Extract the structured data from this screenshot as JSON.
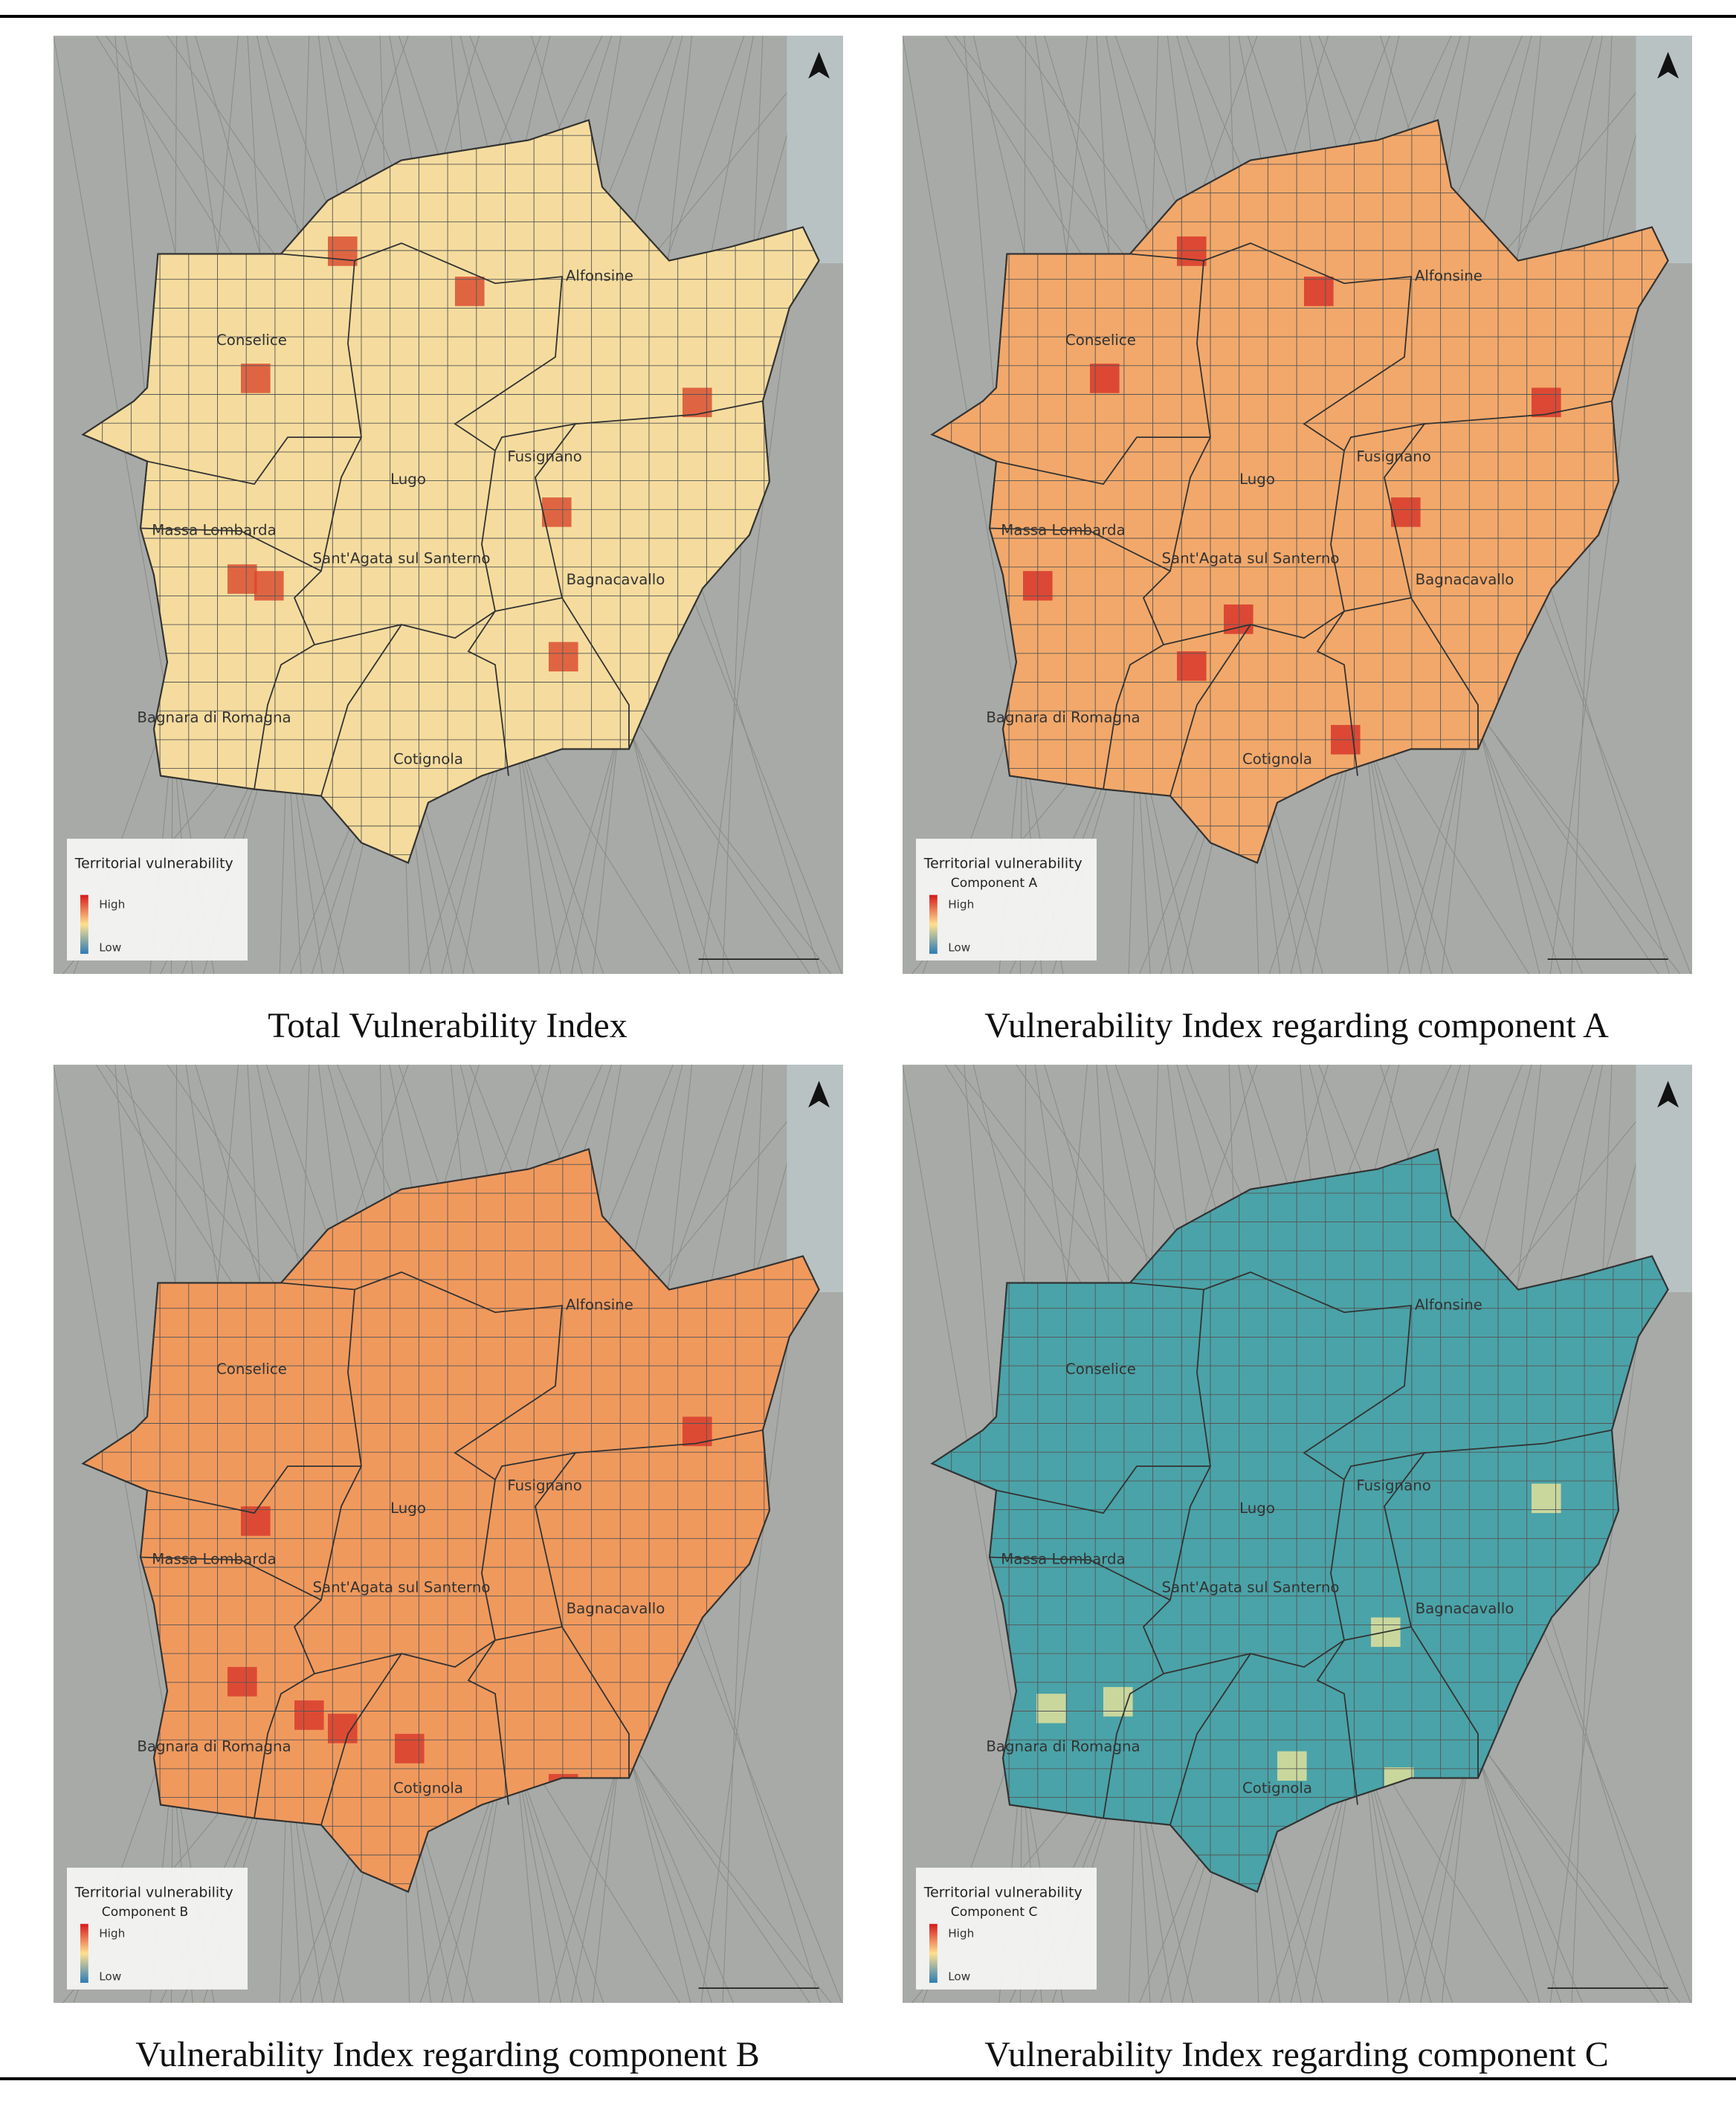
{
  "figure": {
    "towns": [
      "Alfonsine",
      "Conselice",
      "Lugo",
      "Fusignano",
      "Massa Lombarda",
      "Sant'Agata sul Santerno",
      "Bagnacavallo",
      "Bagnara di Romagna",
      "Cotignola"
    ],
    "panels": [
      {
        "caption": "Total Vulnerability Index",
        "color": "#f5dc9e",
        "hot": "#d9472b",
        "legend": {
          "title": "Territorial vulnerability",
          "high": "High",
          "low": "Low"
        }
      },
      {
        "caption": "Vulnerability Index regarding component A",
        "color": "#f2a86a",
        "hot": "#d62f27",
        "legend": {
          "title": "Territorial vulnerability",
          "subtitle": "Component A",
          "high": "High",
          "low": "Low"
        }
      },
      {
        "caption": "Vulnerability Index regarding component B",
        "color": "#f0995d",
        "hot": "#d8362a",
        "legend": {
          "title": "Territorial vulnerability",
          "subtitle": "Component B",
          "high": "High",
          "low": "Low"
        }
      },
      {
        "caption": "Vulnerability Index regarding component C",
        "color": "#4aa3a8",
        "hot": "#e9e49a",
        "legend": {
          "title": "Territorial vulnerability",
          "subtitle": "Component C",
          "high": "High",
          "low": "Low"
        }
      }
    ]
  }
}
